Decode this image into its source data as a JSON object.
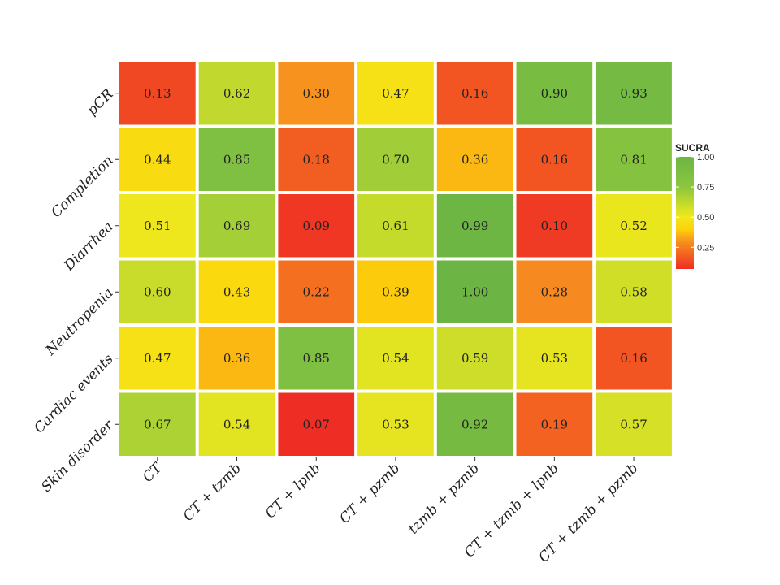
{
  "chart_data": {
    "type": "heatmap",
    "rows": [
      "pCR",
      "Completion",
      "Diarrhea",
      "Neutropenia",
      "Cardiac events",
      "Skin disorder"
    ],
    "columns": [
      "CT",
      "CT + tzmb",
      "CT + lpnb",
      "CT + pzmb",
      "tzmb + pzmb",
      "CT + tzmb + lpnb",
      "CT + tzmb + pzmb"
    ],
    "values": [
      [
        0.13,
        0.62,
        0.3,
        0.47,
        0.16,
        0.9,
        0.93
      ],
      [
        0.44,
        0.85,
        0.18,
        0.7,
        0.36,
        0.16,
        0.81
      ],
      [
        0.51,
        0.69,
        0.09,
        0.61,
        0.99,
        0.1,
        0.52
      ],
      [
        0.6,
        0.43,
        0.22,
        0.39,
        1.0,
        0.28,
        0.58
      ],
      [
        0.47,
        0.36,
        0.85,
        0.54,
        0.59,
        0.53,
        0.16
      ],
      [
        0.67,
        0.54,
        0.07,
        0.53,
        0.92,
        0.19,
        0.57
      ]
    ],
    "value_labels": [
      [
        "0.13",
        "0.62",
        "0.30",
        "0.47",
        "0.16",
        "0.90",
        "0.93"
      ],
      [
        "0.44",
        "0.85",
        "0.18",
        "0.70",
        "0.36",
        "0.16",
        "0.81"
      ],
      [
        "0.51",
        "0.69",
        "0.09",
        "0.61",
        "0.99",
        "0.10",
        "0.52"
      ],
      [
        "0.60",
        "0.43",
        "0.22",
        "0.39",
        "1.00",
        "0.28",
        "0.58"
      ],
      [
        "0.47",
        "0.36",
        "0.85",
        "0.54",
        "0.59",
        "0.53",
        "0.16"
      ],
      [
        "0.67",
        "0.54",
        "0.07",
        "0.53",
        "0.92",
        "0.19",
        "0.57"
      ]
    ],
    "legend": {
      "title": "SUCRA",
      "ticks": [
        1.0,
        0.75,
        0.5,
        0.25
      ],
      "tick_labels": [
        "1.00",
        "0.75",
        "0.50",
        "0.25"
      ],
      "range": [
        0.07,
        1.0
      ],
      "placement": "right"
    },
    "color_scale": [
      {
        "v": 0.07,
        "color": "#ee2e24"
      },
      {
        "v": 0.3,
        "color": "#f7921e"
      },
      {
        "v": 0.4,
        "color": "#fdd20a"
      },
      {
        "v": 0.5,
        "color": "#f2e81b"
      },
      {
        "v": 0.6,
        "color": "#c9dc2b"
      },
      {
        "v": 0.75,
        "color": "#8cc63f"
      },
      {
        "v": 1.0,
        "color": "#6cb544"
      }
    ]
  }
}
